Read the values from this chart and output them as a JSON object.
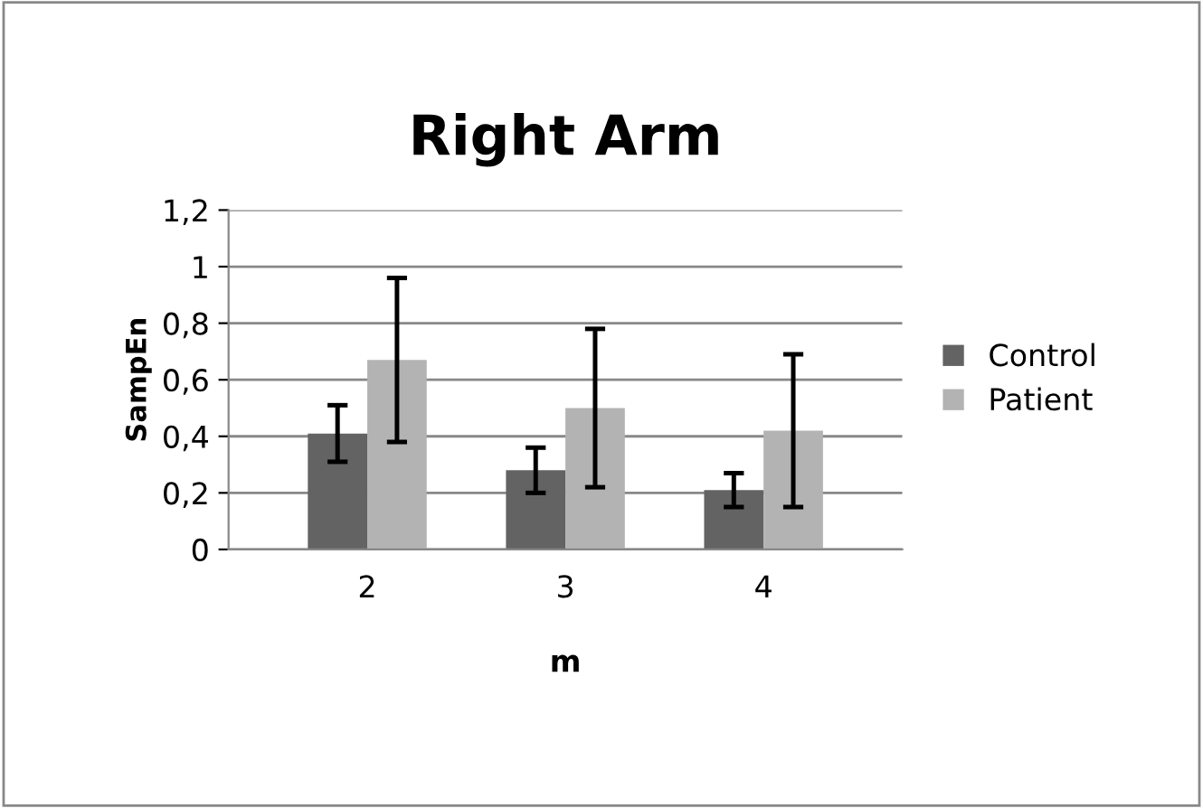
{
  "chart_data": {
    "type": "bar",
    "title": "Right Arm",
    "xlabel": "m",
    "ylabel": "SampEn",
    "categories": [
      "2",
      "3",
      "4"
    ],
    "series": [
      {
        "name": "Control",
        "color": "#636363",
        "values": [
          0.41,
          0.28,
          0.21
        ],
        "errors": [
          0.1,
          0.08,
          0.06
        ]
      },
      {
        "name": "Patient",
        "color": "#b3b3b3",
        "values": [
          0.67,
          0.5,
          0.42
        ],
        "errors": [
          0.29,
          0.28,
          0.27
        ]
      }
    ],
    "ylim": [
      0,
      1.2
    ],
    "yticks": [
      0,
      {
        "value": 0.2,
        "label": "0,2"
      },
      {
        "value": 0.4,
        "label": "0,4"
      },
      {
        "value": 0.6,
        "label": "0,6"
      },
      {
        "value": 0.8,
        "label": "0,8"
      },
      1,
      {
        "value": 1.2,
        "label": "1,2"
      }
    ],
    "grid": "y",
    "legend": "right"
  }
}
